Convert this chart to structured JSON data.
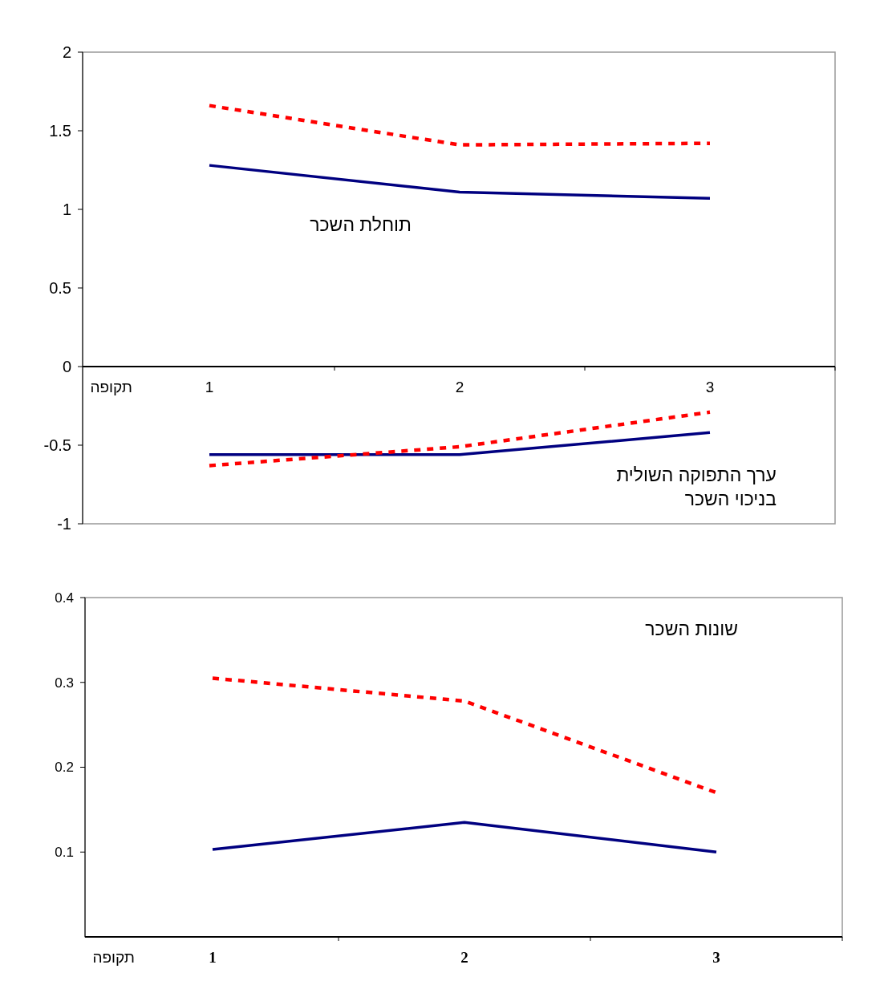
{
  "chart_data": [
    {
      "type": "line",
      "categories": [
        "1",
        "2",
        "3"
      ],
      "xlabel": "תקופה",
      "ylim": [
        -1,
        2
      ],
      "yticks": [
        -1,
        -0.5,
        0,
        0.5,
        1,
        1.5,
        2
      ],
      "grid": false,
      "marker": "none",
      "annotations": [
        "תוחלת השכר",
        "ערך התפוקה השולית\nבניכוי השכר"
      ],
      "series": [
        {
          "color": "#000080",
          "line_style": "solid",
          "values": [
            1.28,
            1.11,
            1.07
          ]
        },
        {
          "color": "#ff0000",
          "line_style": "dotted",
          "values": [
            1.66,
            1.41,
            1.42
          ]
        },
        {
          "color": "#000080",
          "line_style": "solid",
          "values": [
            -0.56,
            -0.56,
            -0.42
          ]
        },
        {
          "color": "#ff0000",
          "line_style": "dotted",
          "values": [
            -0.63,
            -0.51,
            -0.29
          ]
        }
      ]
    },
    {
      "type": "line",
      "categories": [
        "1",
        "2",
        "3"
      ],
      "xlabel": "תקופה",
      "ylim": [
        0,
        0.4
      ],
      "yticks": [
        0.1,
        0.2,
        0.3,
        0.4
      ],
      "grid": false,
      "marker": "none",
      "annotations": [
        "שונות השכר"
      ],
      "series": [
        {
          "color": "#ff0000",
          "line_style": "dotted",
          "values": [
            0.305,
            0.278,
            0.17
          ]
        },
        {
          "color": "#000080",
          "line_style": "solid",
          "values": [
            0.103,
            0.135,
            0.1
          ]
        }
      ]
    }
  ]
}
